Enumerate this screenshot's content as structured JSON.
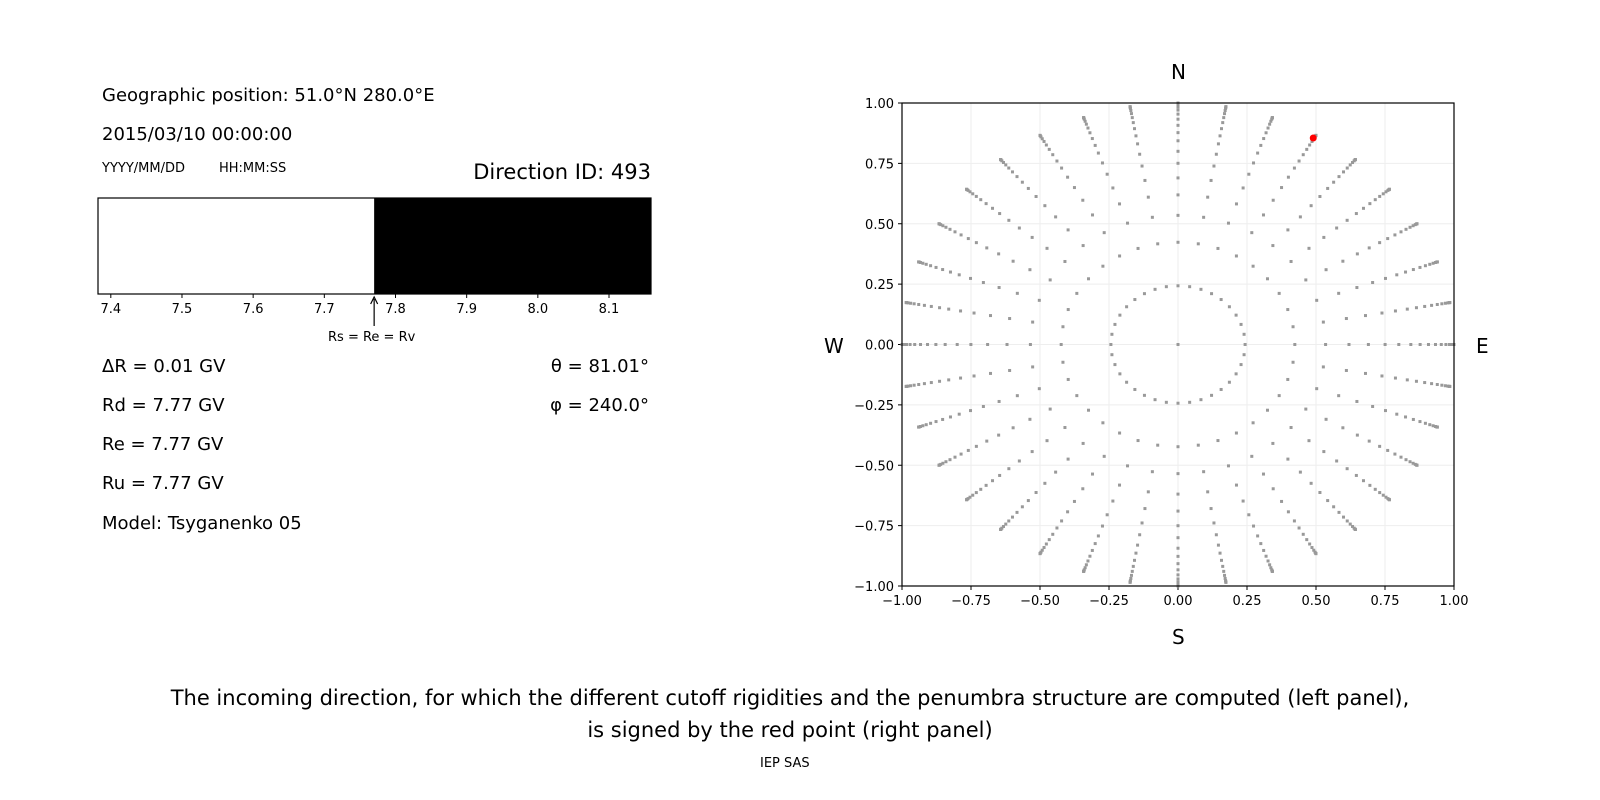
{
  "left_panel": {
    "geo_position": "Geographic position: 51.0°N 280.0°E",
    "datetime": "2015/03/10 00:00:00",
    "date_format": "YYYY/MM/DD",
    "time_format": "HH:MM:SS",
    "direction_id": "Direction ID: 493",
    "arrow_label": "Rs = Re = Rv",
    "delta_r": "ΔR = 0.01 GV",
    "rd": "Rd = 7.77 GV",
    "re": "Re = 7.77 GV",
    "ru": "Ru = 7.77 GV",
    "model": "Model: Tsyganenko 05",
    "theta": "θ = 81.01°",
    "phi": "φ = 240.0°"
  },
  "right_panel": {
    "north": "N",
    "south": "S",
    "west": "W",
    "east": "E"
  },
  "caption": {
    "line1": "The incoming direction, for which the different cutoff rigidities and the penumbra structure are computed (left panel),",
    "line2": "is signed by the red point (right panel)",
    "credit": "IEP SAS"
  },
  "chart_data": [
    {
      "type": "bar",
      "name": "penumbra",
      "xlim": [
        7.382,
        8.159
      ],
      "xticks": [
        "7.4",
        "7.5",
        "7.6",
        "7.7",
        "7.8",
        "7.9",
        "8.0",
        "8.1"
      ],
      "segments": [
        {
          "from": 7.382,
          "to": 7.77,
          "color": "#ffffff"
        },
        {
          "from": 7.77,
          "to": 8.159,
          "color": "#000000"
        }
      ],
      "arrow_at": 7.77
    },
    {
      "type": "scatter",
      "xlim": [
        -1,
        1
      ],
      "ylim": [
        -1,
        1
      ],
      "xticks": [
        "−1.00",
        "−0.75",
        "−0.50",
        "−0.25",
        "0.00",
        "0.25",
        "0.50",
        "0.75",
        "1.00"
      ],
      "yticks": [
        "−1.00",
        "−0.75",
        "−0.50",
        "−0.25",
        "0.00",
        "0.25",
        "0.50",
        "0.75",
        "1.00"
      ],
      "grid": true,
      "point_color": "#999999",
      "highlight_color": "#ff0000",
      "grid_azimuths_deg_step": 10,
      "grid_ring_cos_zenith": [
        0.97,
        0.906,
        0.845,
        0.785,
        0.724,
        0.661,
        0.6,
        0.537,
        0.48,
        0.42,
        0.36,
        0.3,
        0.24,
        0.18,
        0.12,
        0.07,
        0.03,
        0.0
      ],
      "center_point": [
        0,
        0
      ],
      "highlight_point": [
        0.49,
        0.855
      ]
    }
  ]
}
